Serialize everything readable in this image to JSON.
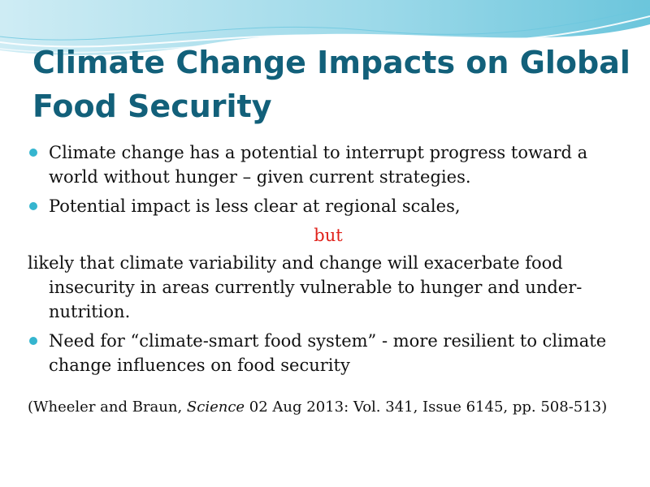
{
  "slide": {
    "title": "Climate Change Impacts on Global Food Security",
    "bullets": [
      "Climate change has a potential to interrupt progress toward a world without hunger – given current strategies.",
      "Potential impact is less clear at regional scales,"
    ],
    "connector": "but",
    "continuation": "likely that climate variability and change will exacerbate food insecurity in areas currently vulnerable to hunger and under-nutrition.",
    "bullet3": "Need for  “climate-smart food system” - more resilient to climate change influences on food security",
    "citation": {
      "prefix": "(Wheeler and Braun, ",
      "journal": "Science",
      "suffix": "  02 Aug 2013: Vol. 341, Issue 6145, pp. 508-513)"
    }
  },
  "colors": {
    "title": "#12607a",
    "bullet_dot": "#35b5cf",
    "highlight": "#e0211a",
    "wave": "#8fd4e6"
  }
}
